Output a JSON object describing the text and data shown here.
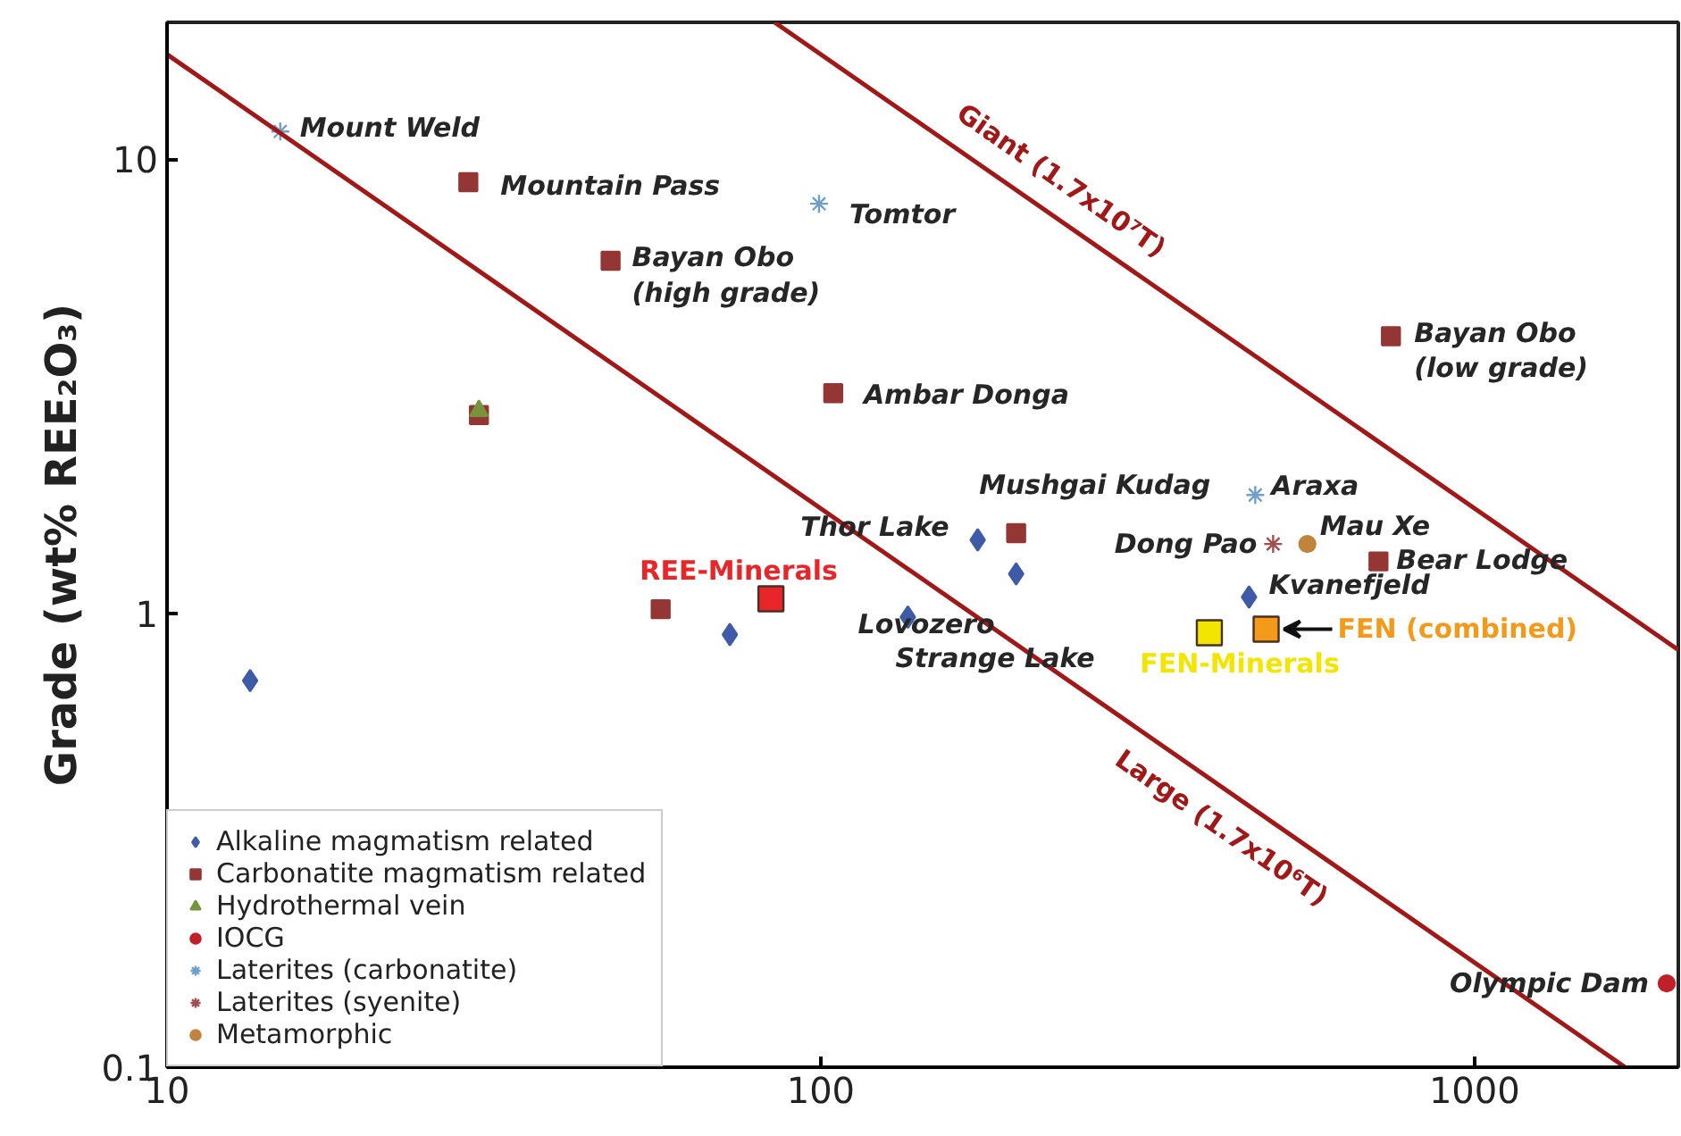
{
  "chart_data": {
    "type": "scatter",
    "ylabel": "Grade (wt% REE₂O₃)",
    "log": "xy",
    "xlim": [
      10,
      2050
    ],
    "ylim": [
      0.1,
      20
    ],
    "xticks": [
      10,
      100,
      1000
    ],
    "yticks": [
      0.1,
      1,
      10
    ],
    "grid": false,
    "legend": "bottom left",
    "series": [
      {
        "name": "Alkaline magmatism related",
        "color": "#3f5aa6",
        "marker": "diamond",
        "x": [
          13.4,
          72.6,
          135.9,
          173.8,
          199,
          452
        ],
        "values": [
          0.71,
          0.897,
          0.98,
          1.45,
          1.22,
          1.085
        ]
      },
      {
        "name": "Carbonatite magmatism related",
        "color": "#943634",
        "marker": "square",
        "x": [
          28.9,
          47.7,
          104.5,
          30.0,
          56.9,
          199,
          745,
          713
        ],
        "values": [
          8.89,
          5.97,
          3.05,
          2.73,
          1.02,
          1.5,
          4.07,
          1.3
        ]
      },
      {
        "name": "Hydrothermal vein",
        "color": "#77933c",
        "marker": "triangle",
        "x": [
          30.0
        ],
        "values": [
          2.79
        ]
      },
      {
        "name": "IOCG",
        "color": "#c0202a",
        "marker": "circle",
        "x": [
          1968
        ],
        "values": [
          0.153
        ]
      },
      {
        "name": "Laterites (carbonatite)",
        "color": "#6f9fc8",
        "marker": "cross",
        "x": [
          14.9,
          99.4,
          462
        ],
        "values": [
          11.5,
          7.97,
          1.82
        ]
      },
      {
        "name": "Laterites (syenite)",
        "color": "#a24e4e",
        "marker": "cross",
        "x": [
          492
        ],
        "values": [
          1.42
        ]
      },
      {
        "name": "Metamorphic",
        "color": "#c0843c",
        "marker": "circle",
        "x": [
          555
        ],
        "values": [
          1.42
        ]
      },
      {
        "color": "#e8262a",
        "marker": "square",
        "x": [
          83.9
        ],
        "values": [
          1.075
        ]
      },
      {
        "color": "#f2e600",
        "marker": "square",
        "x": [
          393
        ],
        "values": [
          0.905
        ]
      },
      {
        "color": "#f39a1a",
        "marker": "square",
        "x": [
          480
        ],
        "values": [
          0.922
        ]
      },
      {
        "type": "line",
        "color": "#a01818",
        "x": [
          85,
          2050
        ],
        "values": [
          20,
          0.83
        ]
      },
      {
        "type": "line",
        "color": "#a01818",
        "x": [
          10,
          1700
        ],
        "values": [
          17,
          0.1
        ]
      }
    ],
    "annotations": [
      {
        "text": "Mount Weld",
        "x": 14.9,
        "y": 11.5
      },
      {
        "text": "Mountain Pass",
        "x": 28.9,
        "y": 8.89
      },
      {
        "text": "Tomtor",
        "x": 99.4,
        "y": 7.97
      },
      {
        "text": "Bayan Obo\n(high grade)",
        "x": 47.7,
        "y": 5.97
      },
      {
        "text": "Ambar Donga",
        "x": 104.5,
        "y": 3.05
      },
      {
        "text": "Bayan Obo\n(low grade)",
        "x": 745,
        "y": 4.07
      },
      {
        "text": "Mushgai Kudag",
        "x": 199,
        "y": 1.5
      },
      {
        "text": "Araxa",
        "x": 462,
        "y": 1.82
      },
      {
        "text": "Thor Lake",
        "x": 173.8,
        "y": 1.45
      },
      {
        "text": "Dong Pao",
        "x": 492,
        "y": 1.42
      },
      {
        "text": "Mau Xe",
        "x": 555,
        "y": 1.42
      },
      {
        "text": "Bear Lodge",
        "x": 713,
        "y": 1.3
      },
      {
        "text": "Kvanefjeld",
        "x": 452,
        "y": 1.085
      },
      {
        "text": "Lovozero",
        "x": 199,
        "y": 1.22
      },
      {
        "text": "Strange Lake",
        "x": 135.9,
        "y": 0.98
      },
      {
        "text": "REE-Minerals",
        "x": 83.9,
        "y": 1.075
      },
      {
        "text": "FEN-Minerals",
        "x": 393,
        "y": 0.905
      },
      {
        "text": "FEN (combined)",
        "x": 480,
        "y": 0.922
      },
      {
        "text": "Olympic Dam",
        "x": 1968,
        "y": 0.153
      },
      {
        "text": "Giant (1.7x10⁷T)",
        "x": 226,
        "y": 7.52
      },
      {
        "text": "Large (1.7x10⁶T)",
        "x": 424,
        "y": 0.401
      }
    ]
  }
}
